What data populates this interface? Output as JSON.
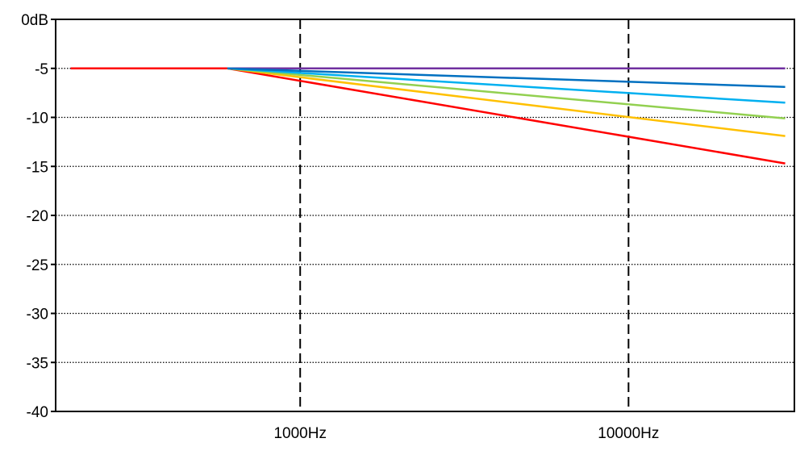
{
  "chart_data": {
    "type": "line",
    "title": "",
    "xlabel": "",
    "ylabel": "",
    "x_scale": "log",
    "xlim": [
      180,
      32000
    ],
    "ylim": [
      -40,
      0
    ],
    "grid": {
      "y": "dotted",
      "x": "dashed"
    },
    "y_ticks": [
      {
        "value": 0,
        "label": "0dB"
      },
      {
        "value": -5,
        "label": "-5"
      },
      {
        "value": -10,
        "label": "-10"
      },
      {
        "value": -15,
        "label": "-15"
      },
      {
        "value": -20,
        "label": "-20"
      },
      {
        "value": -25,
        "label": "-25"
      },
      {
        "value": -30,
        "label": "-30"
      },
      {
        "value": -35,
        "label": "-35"
      },
      {
        "value": -40,
        "label": "-40"
      }
    ],
    "x_ticks": [
      {
        "value": 1000,
        "label": "1000Hz"
      },
      {
        "value": 10000,
        "label": "10000Hz"
      }
    ],
    "series": [
      {
        "color": "#7030a0",
        "points": [
          [
            200,
            -5
          ],
          [
            30000,
            -5
          ]
        ]
      },
      {
        "color": "#ff0000",
        "points": [
          [
            200,
            -5
          ],
          [
            600,
            -5
          ],
          [
            30000,
            -14.7
          ]
        ]
      },
      {
        "color": "#ffc000",
        "points": [
          [
            600,
            -5
          ],
          [
            30000,
            -11.9
          ]
        ]
      },
      {
        "color": "#92d050",
        "points": [
          [
            600,
            -5
          ],
          [
            30000,
            -10.1
          ]
        ]
      },
      {
        "color": "#00b0f0",
        "points": [
          [
            600,
            -5
          ],
          [
            30000,
            -8.5
          ]
        ]
      },
      {
        "color": "#0070c0",
        "points": [
          [
            600,
            -5
          ],
          [
            30000,
            -6.9
          ]
        ]
      }
    ]
  }
}
